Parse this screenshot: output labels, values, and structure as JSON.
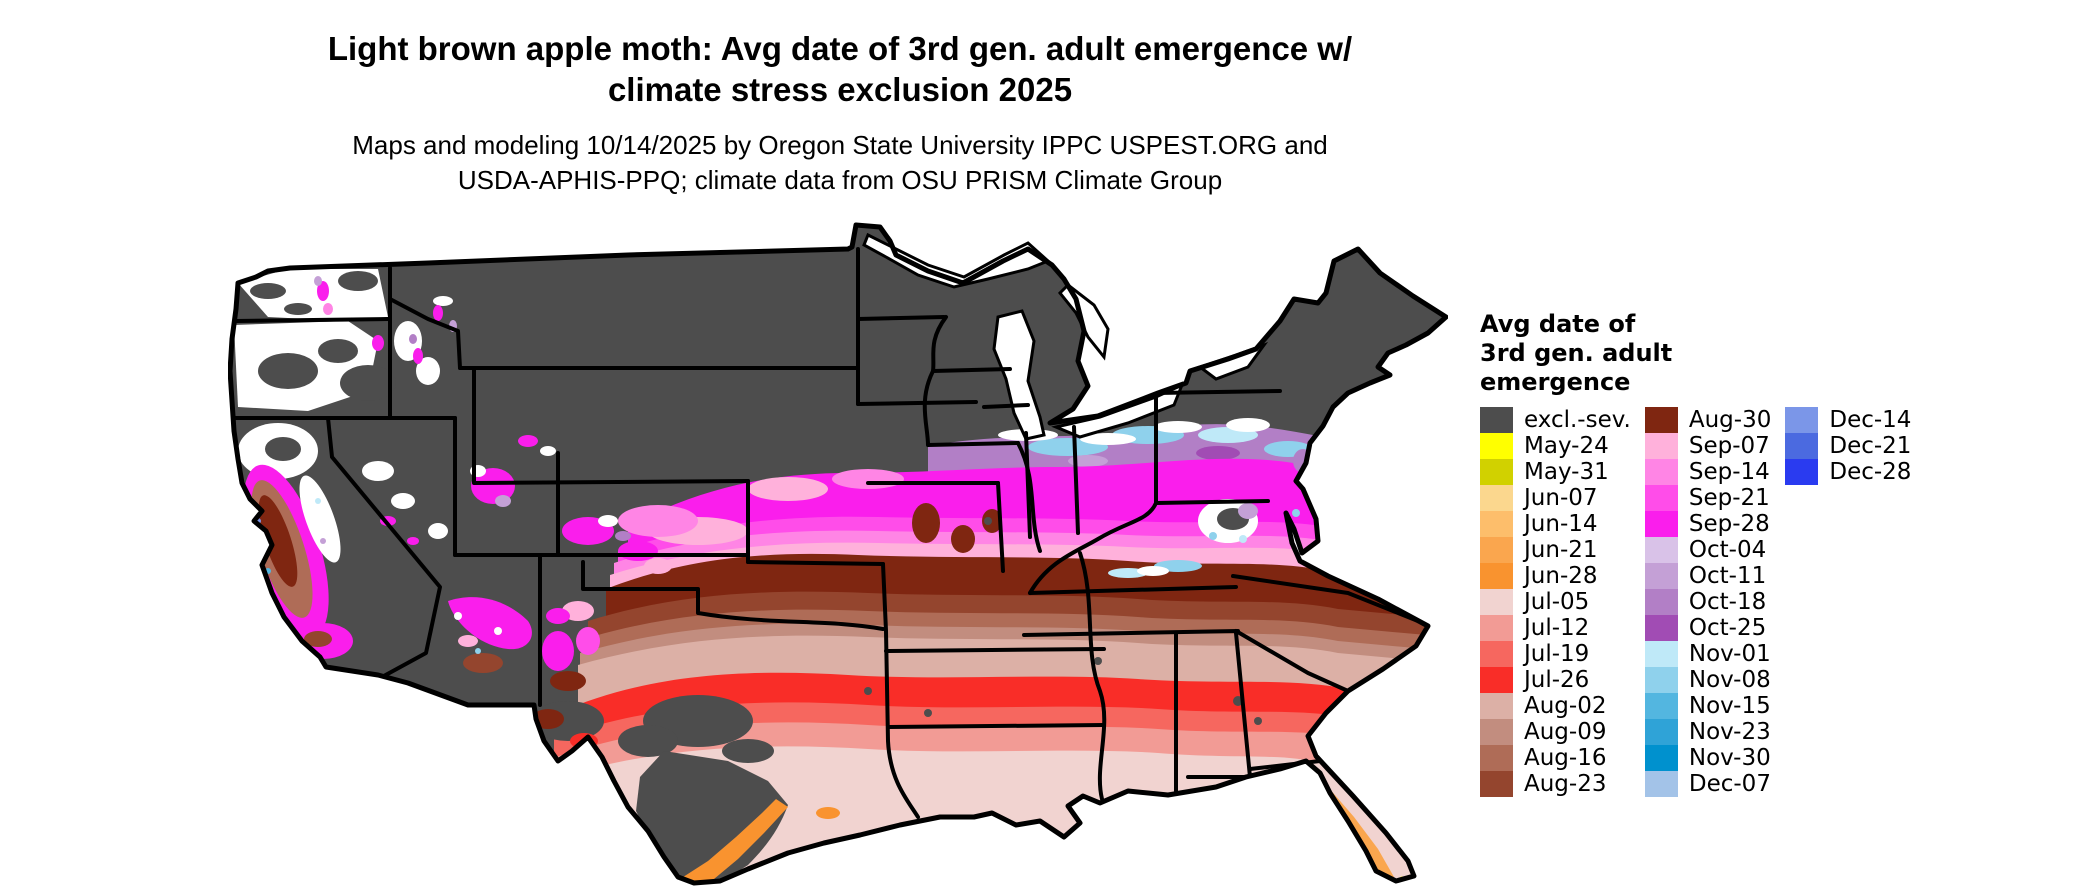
{
  "title": {
    "line1": "Light brown apple moth: Avg date of 3rd gen. adult emergence w/",
    "line2": "climate stress exclusion 2025"
  },
  "subtitle": {
    "line1": "Maps and modeling 10/14/2025 by Oregon State University IPPC USPEST.ORG and",
    "line2": "USDA-APHIS-PPQ; climate data from OSU PRISM Climate Group"
  },
  "legend": {
    "title_lines": [
      "Avg date of",
      "3rd gen. adult",
      "emergence"
    ],
    "columns": [
      {
        "entries": [
          {
            "label": "excl.-sev.",
            "color": "#4D4D4D"
          },
          {
            "label": "May-24",
            "color": "#FFFF00"
          },
          {
            "label": "May-31",
            "color": "#D1D100"
          },
          {
            "label": "Jun-07",
            "color": "#FBD78E"
          },
          {
            "label": "Jun-14",
            "color": "#FDBE6B"
          },
          {
            "label": "Jun-21",
            "color": "#FAA64E"
          },
          {
            "label": "Jun-28",
            "color": "#F9932F"
          },
          {
            "label": "Jul-05",
            "color": "#F1D3D0"
          },
          {
            "label": "Jul-12",
            "color": "#F29B95"
          },
          {
            "label": "Jul-19",
            "color": "#F6675F"
          },
          {
            "label": "Jul-26",
            "color": "#F92D28"
          },
          {
            "label": "Aug-02",
            "color": "#DCB0A6"
          },
          {
            "label": "Aug-09",
            "color": "#C28D7F"
          },
          {
            "label": "Aug-16",
            "color": "#AF6C57"
          },
          {
            "label": "Aug-23",
            "color": "#94452E"
          }
        ]
      },
      {
        "entries": [
          {
            "label": "Aug-30",
            "color": "#7F2611"
          },
          {
            "label": "Sep-07",
            "color": "#FFB1DB"
          },
          {
            "label": "Sep-14",
            "color": "#FF85E5"
          },
          {
            "label": "Sep-21",
            "color": "#FF4DE9"
          },
          {
            "label": "Sep-28",
            "color": "#FA1EEC"
          },
          {
            "label": "Oct-04",
            "color": "#D9C2E8"
          },
          {
            "label": "Oct-11",
            "color": "#C4A0D6"
          },
          {
            "label": "Oct-18",
            "color": "#B27FC6"
          },
          {
            "label": "Oct-25",
            "color": "#A14CB4"
          },
          {
            "label": "Nov-01",
            "color": "#BFE9F8"
          },
          {
            "label": "Nov-08",
            "color": "#8FD1EC"
          },
          {
            "label": "Nov-15",
            "color": "#53B6E0"
          },
          {
            "label": "Nov-23",
            "color": "#2FA3D7"
          },
          {
            "label": "Nov-30",
            "color": "#0091CE"
          },
          {
            "label": "Dec-07",
            "color": "#A3C3E8"
          }
        ]
      },
      {
        "entries": [
          {
            "label": "Dec-14",
            "color": "#7B96E8"
          },
          {
            "label": "Dec-21",
            "color": "#4B6AE0"
          },
          {
            "label": "Dec-28",
            "color": "#2A3BF0"
          }
        ]
      }
    ]
  },
  "map": {
    "border_color": "#000000",
    "water_color": "#FFFFFF",
    "no_data_color": "#FFFFFF",
    "base_label": "excl.-sev."
  }
}
